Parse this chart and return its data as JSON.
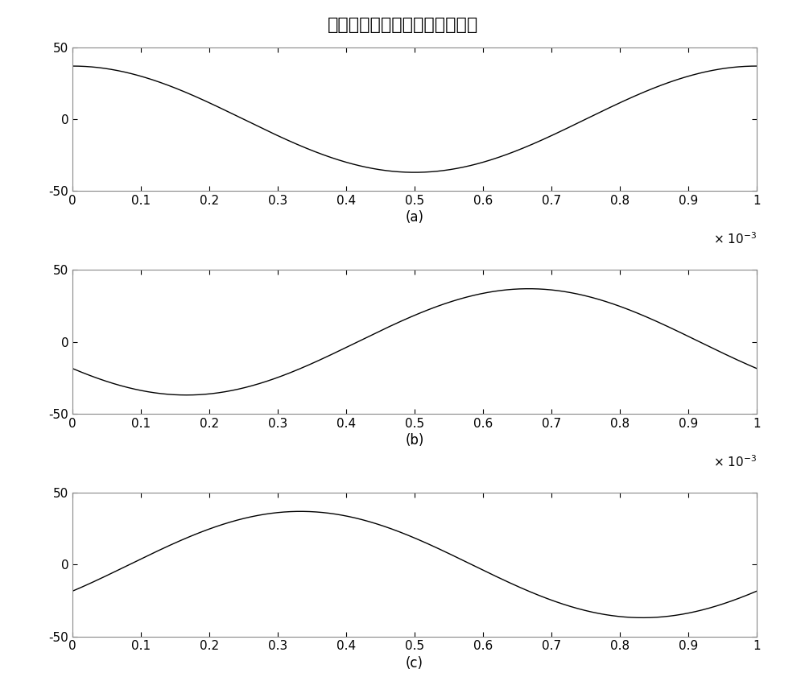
{
  "title": "波形发生器产生的基带信号波形",
  "xlim": [
    0,
    0.001
  ],
  "ylim": [
    -50,
    50
  ],
  "xticks": [
    0,
    0.0001,
    0.0002,
    0.0003,
    0.0004,
    0.0005,
    0.0006,
    0.0007,
    0.0008,
    0.0009,
    0.001
  ],
  "xticklabels": [
    "0",
    "0.1",
    "0.2",
    "0.3",
    "0.4",
    "0.5",
    "0.6",
    "0.7",
    "0.8",
    "0.9",
    "1"
  ],
  "yticks": [
    -50,
    0,
    50
  ],
  "line_color": "#000000",
  "line_width": 1.0,
  "bg_color": "#ffffff",
  "subplot_labels": [
    "(a)",
    "(b)",
    "(c)"
  ],
  "amplitude": 35.0,
  "frequency": 1000.0,
  "phase_a": 0.0,
  "phase_b": 2.0943951,
  "phase_c": 4.1887902,
  "envelope_power": 0.55,
  "title_fontsize": 16,
  "tick_fontsize": 11,
  "label_fontsize": 12
}
